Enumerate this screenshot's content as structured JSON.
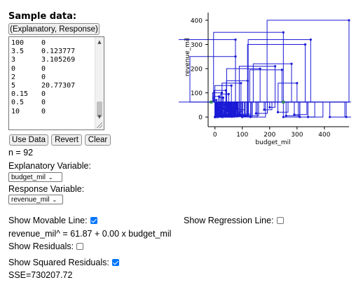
{
  "sample": {
    "title": "Sample data:",
    "header_button": "(Explanatory, Response)",
    "rows": [
      [
        "100",
        "0"
      ],
      [
        "3.5",
        "0.123777"
      ],
      [
        "3",
        "3.105269"
      ],
      [
        "0",
        "0"
      ],
      [
        "2",
        "0"
      ],
      [
        "5",
        "20.77307"
      ],
      [
        "0.15",
        "0"
      ],
      [
        "0.5",
        "0"
      ],
      [
        "10",
        "0"
      ]
    ]
  },
  "buttons": {
    "use_data": "Use Data",
    "revert": "Revert",
    "clear": "Clear"
  },
  "n_label": "n = 92",
  "explanatory": {
    "label": "Explanatory Variable:",
    "selected": "budget_mil"
  },
  "response": {
    "label": "Response Variable:",
    "selected": "revenue_mil"
  },
  "options": {
    "movable_label": "Show Movable Line:",
    "movable_checked": true,
    "regression_label": "Show Regression Line:",
    "regression_checked": false,
    "equation": "revenue_mil^ = 61.87 + 0.00 x budget_mil",
    "residuals_label": "Show Residuals:",
    "residuals_checked": false,
    "sq_residuals_label": "Show Squared Residuals:",
    "sq_residuals_checked": true,
    "sse": "SSE=730207.72"
  },
  "colors": {
    "squares": "#1a1ad6",
    "points": "#2e8b57",
    "checkbox": "#0075ff"
  },
  "chart_data": {
    "type": "scatter",
    "xlabel": "budget_mil",
    "ylabel": "revenue_mil",
    "xlim": [
      -25,
      490
    ],
    "ylim": [
      -40,
      420
    ],
    "x_ticks": [
      0,
      100,
      200,
      300,
      400
    ],
    "y_ticks": [
      0,
      100,
      200,
      300,
      400
    ],
    "line": {
      "intercept": 61.87,
      "slope": 0.0
    },
    "points": [
      {
        "x": 490,
        "y": 400
      },
      {
        "x": 250,
        "y": 350
      },
      {
        "x": 75,
        "y": 320
      },
      {
        "x": 350,
        "y": 320
      },
      {
        "x": 75,
        "y": 250
      },
      {
        "x": 330,
        "y": 300
      },
      {
        "x": 165,
        "y": 200
      },
      {
        "x": 245,
        "y": 195
      },
      {
        "x": 280,
        "y": 220
      },
      {
        "x": 220,
        "y": 210
      },
      {
        "x": 300,
        "y": 140
      },
      {
        "x": 120,
        "y": 150
      },
      {
        "x": 95,
        "y": 140
      },
      {
        "x": 60,
        "y": 130
      },
      {
        "x": 40,
        "y": 110
      },
      {
        "x": 25,
        "y": 100
      },
      {
        "x": 50,
        "y": 95
      },
      {
        "x": 15,
        "y": 85
      },
      {
        "x": 30,
        "y": 80
      },
      {
        "x": 5,
        "y": 70
      },
      {
        "x": 10,
        "y": 60
      },
      {
        "x": 20,
        "y": 55
      },
      {
        "x": 35,
        "y": 50
      },
      {
        "x": 45,
        "y": 45
      },
      {
        "x": 55,
        "y": 40
      },
      {
        "x": 65,
        "y": 35
      },
      {
        "x": 80,
        "y": 30
      },
      {
        "x": 3,
        "y": 25
      },
      {
        "x": 8,
        "y": 20
      },
      {
        "x": 12,
        "y": 15
      },
      {
        "x": 18,
        "y": 10
      },
      {
        "x": 22,
        "y": 5
      },
      {
        "x": 28,
        "y": 0
      },
      {
        "x": 100,
        "y": 0
      },
      {
        "x": 3.5,
        "y": 0.123777
      },
      {
        "x": 3,
        "y": 3.105269
      },
      {
        "x": 0,
        "y": 0
      },
      {
        "x": 2,
        "y": 0
      },
      {
        "x": 5,
        "y": 20.77307
      },
      {
        "x": 0.15,
        "y": 0
      },
      {
        "x": 0.5,
        "y": 0
      },
      {
        "x": 10,
        "y": 0
      },
      {
        "x": 40,
        "y": 5
      },
      {
        "x": 60,
        "y": 8
      },
      {
        "x": 70,
        "y": 2
      },
      {
        "x": 90,
        "y": 12
      },
      {
        "x": 110,
        "y": 6
      },
      {
        "x": 130,
        "y": 0
      },
      {
        "x": 150,
        "y": 15
      },
      {
        "x": 180,
        "y": 30
      },
      {
        "x": 200,
        "y": 40
      },
      {
        "x": 230,
        "y": 20
      },
      {
        "x": 260,
        "y": 5
      },
      {
        "x": 290,
        "y": 10
      },
      {
        "x": 310,
        "y": 0
      },
      {
        "x": 340,
        "y": 0
      },
      {
        "x": 480,
        "y": 0
      },
      {
        "x": 420,
        "y": 0
      },
      {
        "x": 250,
        "y": 0
      },
      {
        "x": 0,
        "y": 0
      },
      {
        "x": 10,
        "y": 40
      },
      {
        "x": 15,
        "y": 30
      },
      {
        "x": 25,
        "y": 20
      },
      {
        "x": 30,
        "y": 35
      },
      {
        "x": 35,
        "y": 15
      },
      {
        "x": 45,
        "y": 25
      },
      {
        "x": 50,
        "y": 10
      },
      {
        "x": 55,
        "y": 18
      },
      {
        "x": 65,
        "y": 22
      },
      {
        "x": 75,
        "y": 12
      },
      {
        "x": 85,
        "y": 4
      },
      {
        "x": 7,
        "y": 8
      },
      {
        "x": 1,
        "y": 2
      },
      {
        "x": 4,
        "y": 12
      },
      {
        "x": 6,
        "y": 5
      },
      {
        "x": 9,
        "y": 14
      },
      {
        "x": 11,
        "y": 3
      },
      {
        "x": 13,
        "y": 7
      },
      {
        "x": 16,
        "y": 2
      },
      {
        "x": 19,
        "y": 6
      },
      {
        "x": 21,
        "y": 9
      },
      {
        "x": 24,
        "y": 1
      },
      {
        "x": 26,
        "y": 4
      },
      {
        "x": 32,
        "y": 6
      },
      {
        "x": 38,
        "y": 3
      },
      {
        "x": 42,
        "y": 9
      },
      {
        "x": 48,
        "y": 2
      },
      {
        "x": 52,
        "y": 6
      },
      {
        "x": 58,
        "y": 3
      },
      {
        "x": 62,
        "y": 1
      },
      {
        "x": 68,
        "y": 4
      },
      {
        "x": 72,
        "y": 7
      }
    ]
  }
}
